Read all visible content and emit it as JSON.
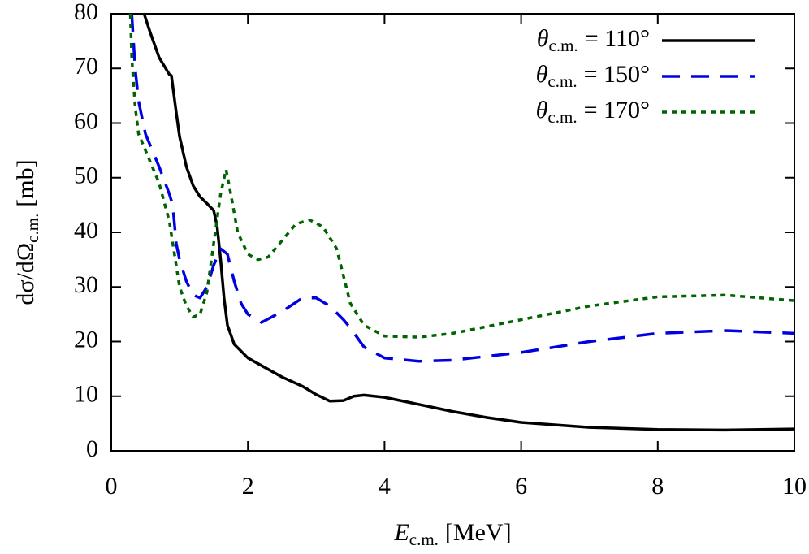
{
  "chart_data": {
    "type": "line",
    "xlabel": [
      "E",
      "c.m.",
      "[MeV]"
    ],
    "ylabel": [
      "dσ/dΩ",
      "c.m.",
      "[mb]"
    ],
    "xlim": [
      0,
      10
    ],
    "xticks": [
      0,
      2,
      4,
      6,
      8,
      10
    ],
    "ylim": [
      0,
      80
    ],
    "yticks": [
      0,
      10,
      20,
      30,
      40,
      50,
      60,
      70,
      80
    ],
    "legend": "upper right",
    "series": [
      {
        "name": [
          "θ",
          "c.m.",
          "= 110°"
        ],
        "color": "#000000",
        "dash": "solid",
        "x": [
          0.48,
          0.57,
          0.7,
          0.85,
          0.88,
          0.95,
          1.0,
          1.1,
          1.2,
          1.3,
          1.4,
          1.5,
          1.55,
          1.6,
          1.65,
          1.7,
          1.8,
          2.0,
          2.5,
          2.8,
          3.0,
          3.2,
          3.4,
          3.55,
          3.7,
          4.0,
          4.5,
          5.0,
          5.5,
          6.0,
          7.0,
          8.0,
          9.0,
          10.0
        ],
        "values": [
          80,
          76.6,
          72,
          68.9,
          68.7,
          62,
          57.5,
          52,
          48.5,
          46.5,
          45.3,
          44,
          41,
          35,
          28,
          23,
          19.5,
          17,
          13.5,
          11.8,
          10.3,
          9.1,
          9.2,
          10,
          10.2,
          9.8,
          8.5,
          7.2,
          6.1,
          5.2,
          4.3,
          3.9,
          3.8,
          4.0
        ]
      },
      {
        "name": [
          "θ",
          "c.m.",
          "= 150°"
        ],
        "color": "#0000e0",
        "dash": "dashed",
        "x": [
          0.3,
          0.35,
          0.4,
          0.5,
          0.6,
          0.7,
          0.85,
          0.9,
          0.95,
          1.0,
          1.1,
          1.2,
          1.3,
          1.4,
          1.5,
          1.6,
          1.7,
          1.8,
          1.9,
          2.0,
          2.2,
          2.5,
          2.8,
          3.0,
          3.2,
          3.4,
          3.5,
          3.7,
          4.0,
          4.5,
          5.0,
          6.0,
          7.0,
          8.0,
          9.0,
          10.0
        ],
        "values": [
          80,
          70,
          64,
          58,
          55,
          52,
          47,
          45,
          38,
          35,
          31,
          28.5,
          28,
          30,
          34,
          37,
          36,
          31,
          27,
          25,
          23.5,
          25.5,
          28,
          28,
          26.5,
          24,
          22.5,
          19,
          17,
          16.4,
          16.6,
          18,
          20,
          21.5,
          22,
          21.5
        ]
      },
      {
        "name": [
          "θ",
          "c.m.",
          "= 170°"
        ],
        "color": "#006400",
        "dash": "dotted",
        "x": [
          0.28,
          0.3,
          0.35,
          0.4,
          0.5,
          0.6,
          0.7,
          0.85,
          0.9,
          1.0,
          1.1,
          1.2,
          1.3,
          1.4,
          1.5,
          1.6,
          1.68,
          1.75,
          1.85,
          2.0,
          2.15,
          2.3,
          2.5,
          2.7,
          2.9,
          3.1,
          3.3,
          3.5,
          3.7,
          4.0,
          4.5,
          5.0,
          6.0,
          7.0,
          8.0,
          9.0,
          10.0
        ],
        "values": [
          80,
          72,
          63,
          58,
          55,
          52,
          49,
          42,
          38,
          30,
          26.5,
          24.5,
          25,
          29,
          38,
          47,
          51.5,
          47,
          40,
          36,
          35,
          35.5,
          38.5,
          41.5,
          42.3,
          41,
          37,
          27,
          23,
          21,
          20.8,
          21.5,
          24,
          26.5,
          28.2,
          28.5,
          27.5
        ]
      }
    ]
  }
}
